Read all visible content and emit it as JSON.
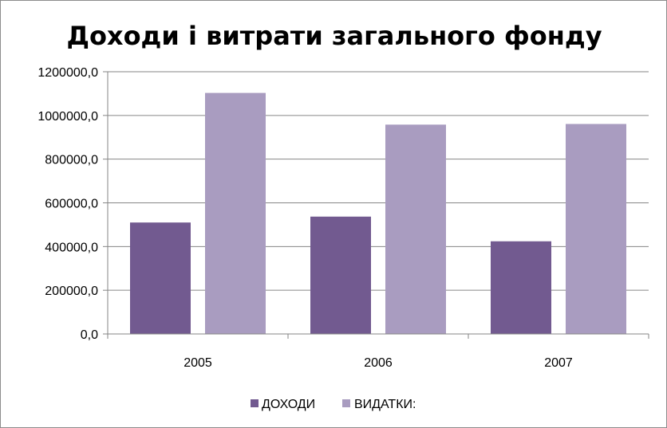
{
  "chart_data": {
    "type": "bar",
    "title": "Доходи і витрати загального фонду",
    "categories": [
      "2005",
      "2006",
      "2007"
    ],
    "series": [
      {
        "name": "ДОХОДИ",
        "values": [
          510000,
          537000,
          424000
        ],
        "color": "#725a90"
      },
      {
        "name": "ВИДАТКИ:",
        "values": [
          1103000,
          958000,
          961000
        ],
        "color": "#a99cc0"
      }
    ],
    "ylim": [
      0,
      1200000
    ],
    "ytick_step": 200000,
    "yticks": [
      "0,0",
      "200000,0",
      "400000,0",
      "600000,0",
      "800000,0",
      "1000000,0",
      "1200000,0"
    ],
    "grid": true,
    "legend_position": "bottom"
  }
}
